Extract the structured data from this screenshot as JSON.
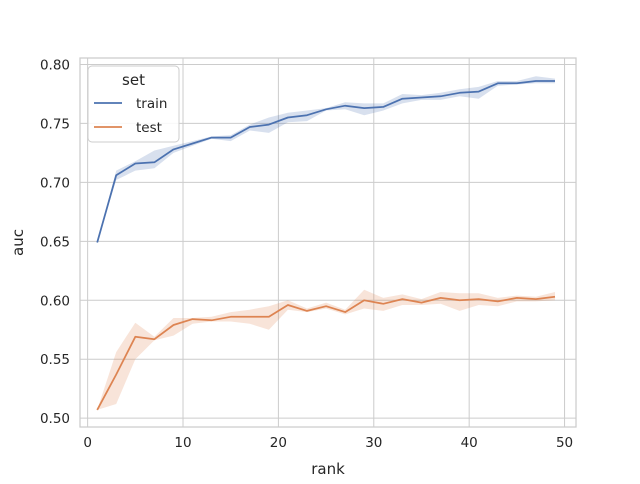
{
  "chart_data": {
    "type": "line",
    "title": "",
    "xlabel": "rank",
    "ylabel": "auc",
    "xlim": [
      -0.8,
      51.2
    ],
    "ylim": [
      0.4925,
      0.8055
    ],
    "xticks": [
      0,
      10,
      20,
      30,
      40,
      50
    ],
    "xtick_labels": [
      "0",
      "10",
      "20",
      "30",
      "40",
      "50"
    ],
    "yticks": [
      0.5,
      0.55,
      0.6,
      0.65,
      0.7,
      0.75,
      0.8
    ],
    "ytick_labels": [
      "0.50",
      "0.55",
      "0.60",
      "0.65",
      "0.70",
      "0.75",
      "0.80"
    ],
    "grid": true,
    "legend": {
      "title": "set",
      "placement": "top-left"
    },
    "x": [
      1,
      3,
      5,
      7,
      9,
      11,
      13,
      15,
      17,
      19,
      21,
      23,
      25,
      27,
      29,
      31,
      33,
      35,
      37,
      39,
      41,
      43,
      45,
      47,
      49
    ],
    "series": [
      {
        "name": "train",
        "color": "#4c72b0",
        "values": [
          0.649,
          0.706,
          0.716,
          0.717,
          0.728,
          0.733,
          0.738,
          0.738,
          0.747,
          0.749,
          0.755,
          0.757,
          0.762,
          0.765,
          0.763,
          0.764,
          0.771,
          0.772,
          0.773,
          0.776,
          0.777,
          0.784,
          0.784,
          0.786,
          0.786
        ],
        "ci_low": [
          0.649,
          0.702,
          0.71,
          0.712,
          0.725,
          0.731,
          0.737,
          0.735,
          0.744,
          0.742,
          0.751,
          0.752,
          0.761,
          0.762,
          0.757,
          0.761,
          0.767,
          0.77,
          0.77,
          0.773,
          0.771,
          0.782,
          0.783,
          0.784,
          0.784
        ],
        "ci_high": [
          0.649,
          0.71,
          0.718,
          0.727,
          0.731,
          0.735,
          0.739,
          0.74,
          0.749,
          0.755,
          0.759,
          0.761,
          0.763,
          0.768,
          0.767,
          0.767,
          0.775,
          0.774,
          0.776,
          0.779,
          0.781,
          0.786,
          0.786,
          0.79,
          0.788
        ]
      },
      {
        "name": "test",
        "color": "#dd8452",
        "values": [
          0.507,
          0.537,
          0.569,
          0.567,
          0.579,
          0.584,
          0.583,
          0.586,
          0.586,
          0.586,
          0.596,
          0.591,
          0.595,
          0.59,
          0.6,
          0.597,
          0.601,
          0.598,
          0.602,
          0.6,
          0.601,
          0.599,
          0.602,
          0.601,
          0.603
        ],
        "ci_low": [
          0.507,
          0.512,
          0.55,
          0.566,
          0.57,
          0.58,
          0.582,
          0.582,
          0.58,
          0.575,
          0.592,
          0.59,
          0.593,
          0.588,
          0.593,
          0.591,
          0.596,
          0.596,
          0.597,
          0.591,
          0.596,
          0.595,
          0.599,
          0.599,
          0.6
        ],
        "ci_high": [
          0.507,
          0.556,
          0.581,
          0.569,
          0.585,
          0.585,
          0.586,
          0.59,
          0.592,
          0.595,
          0.6,
          0.593,
          0.598,
          0.592,
          0.609,
          0.602,
          0.605,
          0.601,
          0.607,
          0.606,
          0.606,
          0.602,
          0.604,
          0.603,
          0.607
        ]
      }
    ]
  }
}
